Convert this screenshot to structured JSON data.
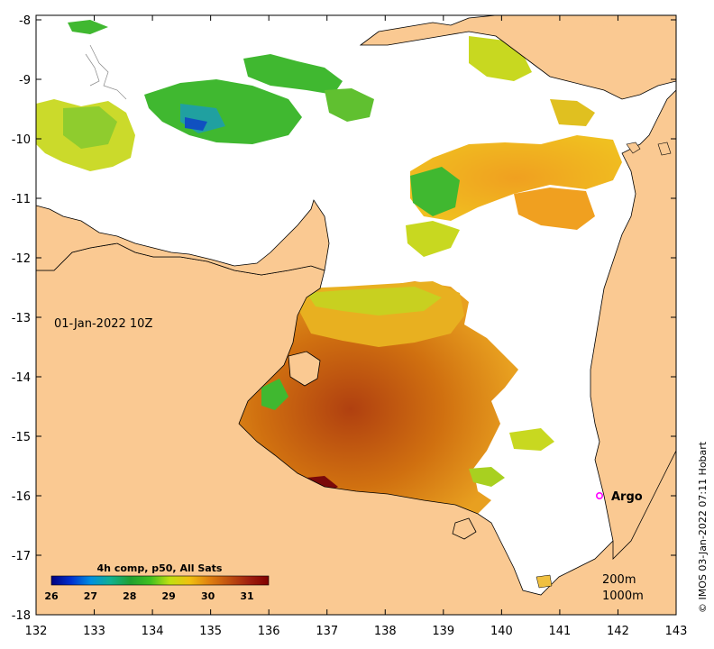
{
  "map": {
    "timestamp_label": "01-Jan-2022 10Z",
    "credit": "© IMOS 03-Jan-2022 07:11 Hobart",
    "lon_ticks": [
      "132",
      "133",
      "134",
      "135",
      "136",
      "137",
      "138",
      "139",
      "140",
      "141",
      "142",
      "143"
    ],
    "lat_ticks": [
      "-8",
      "-9",
      "-10",
      "-11",
      "-12",
      "-13",
      "-14",
      "-15",
      "-16",
      "-17",
      "-18"
    ],
    "bathymetry_labels": [
      "200m",
      "1000m"
    ],
    "argo_label": "Argo",
    "colors": {
      "land": "#fac992",
      "water": "#ffffff",
      "argo_marker": "#ff00ff",
      "coast_line": "#000000"
    },
    "colorbar": {
      "title": "4h comp, p50, All Sats",
      "tick_labels": [
        "26",
        "27",
        "28",
        "29",
        "30",
        "31"
      ],
      "stops": [
        "#00007f",
        "#0030d0",
        "#0090e0",
        "#10b090",
        "#20a030",
        "#40c020",
        "#c0e010",
        "#f0c010",
        "#e08010",
        "#c05010",
        "#a02010",
        "#800000"
      ]
    }
  }
}
